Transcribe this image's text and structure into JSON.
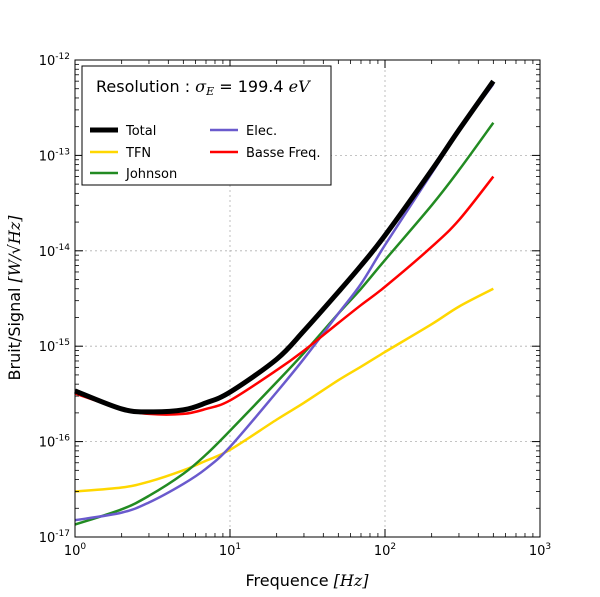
{
  "chart_data": {
    "type": "line",
    "title": "Resolution : σE = 199.4 eV",
    "title_prefix": "Resolution : ",
    "title_symbol": "σ",
    "title_symbol_sub": "E",
    "title_equals": " = ",
    "title_value": "199.4",
    "title_unit": "eV",
    "xlabel_prefix": "Frequence ",
    "xlabel_unit": "[Hz]",
    "ylabel_prefix": "Bruit/Signal ",
    "ylabel_unit": "[W/√Hz]",
    "x_scale": "log",
    "y_scale": "log",
    "xlim": [
      1,
      1000
    ],
    "ylim": [
      1e-17,
      1e-12
    ],
    "grid": true,
    "legend_position": "top-left",
    "x_ticks": [
      {
        "value": 1,
        "base": "10",
        "exp": "0"
      },
      {
        "value": 10,
        "base": "10",
        "exp": "1"
      },
      {
        "value": 100,
        "base": "10",
        "exp": "2"
      },
      {
        "value": 1000,
        "base": "10",
        "exp": "3"
      }
    ],
    "y_ticks": [
      {
        "value": 1e-17,
        "base": "10",
        "exp": "-17"
      },
      {
        "value": 1e-16,
        "base": "10",
        "exp": "-16"
      },
      {
        "value": 1e-15,
        "base": "10",
        "exp": "-15"
      },
      {
        "value": 1e-14,
        "base": "10",
        "exp": "-14"
      },
      {
        "value": 1e-13,
        "base": "10",
        "exp": "-13"
      },
      {
        "value": 1e-12,
        "base": "10",
        "exp": "-12"
      }
    ],
    "x": [
      1,
      2,
      3,
      5,
      7,
      10,
      20,
      30,
      50,
      70,
      100,
      200,
      300,
      500
    ],
    "series": [
      {
        "name": "Total",
        "color": "#000000",
        "width": 5,
        "values": [
          3.4e-16,
          2.2e-16,
          2.05e-16,
          2.15e-16,
          2.55e-16,
          3.3e-16,
          7.3e-16,
          1.45e-15,
          3.7e-15,
          7e-15,
          1.45e-14,
          7e-14,
          1.85e-13,
          6e-13
        ]
      },
      {
        "name": "TFN",
        "color": "#ffd700",
        "width": 2.5,
        "values": [
          3e-17,
          3.3e-17,
          3.8e-17,
          5e-17,
          6.3e-17,
          8.2e-17,
          1.7e-16,
          2.55e-16,
          4.4e-16,
          6.1e-16,
          8.7e-16,
          1.7e-15,
          2.6e-15,
          4e-15
        ]
      },
      {
        "name": "Johnson",
        "color": "#228b22",
        "width": 2.5,
        "values": [
          1.35e-17,
          1.95e-17,
          2.7e-17,
          4.6e-17,
          7.3e-17,
          1.3e-16,
          4.2e-16,
          8.5e-16,
          2.2e-15,
          4e-15,
          8e-15,
          3e-14,
          7e-14,
          2.2e-13
        ]
      },
      {
        "name": "Elec.",
        "color": "#6a5acd",
        "width": 2.5,
        "values": [
          1.5e-17,
          1.8e-17,
          2.3e-17,
          3.6e-17,
          5.2e-17,
          8.8e-17,
          3.3e-16,
          7.4e-16,
          2.2e-15,
          4.5e-15,
          1.15e-14,
          6.5e-14,
          1.8e-13,
          5.6e-13
        ]
      },
      {
        "name": "Basse Freq.",
        "color": "#ff0000",
        "width": 2.5,
        "values": [
          3.2e-16,
          2.2e-16,
          1.95e-16,
          1.95e-16,
          2.2e-16,
          2.7e-16,
          5.6e-16,
          9e-16,
          1.75e-15,
          2.7e-15,
          4.2e-15,
          1.1e-14,
          2.1e-14,
          6e-14
        ]
      }
    ]
  }
}
